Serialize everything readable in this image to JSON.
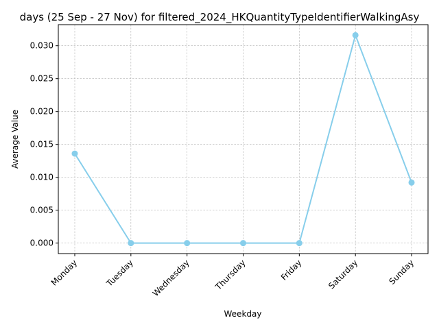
{
  "chart_data": {
    "type": "line",
    "title": "days (25 Sep - 27 Nov) for filtered_2024_HKQuantityTypeIdentifierWalkingAsy",
    "xlabel": "Weekday",
    "ylabel": "Average Value",
    "categories": [
      "Monday",
      "Tuesday",
      "Wednesday",
      "Thursday",
      "Friday",
      "Saturday",
      "Sunday"
    ],
    "series": [
      {
        "values": [
          0.0136,
          0.0,
          0.0,
          0.0,
          0.0,
          0.0316,
          0.0092
        ]
      }
    ],
    "ylim": [
      -0.0016,
      0.0332
    ],
    "yticks": [
      "0.000",
      "0.005",
      "0.010",
      "0.015",
      "0.020",
      "0.025",
      "0.030"
    ],
    "grid": true,
    "colors": {
      "line": "#87ceeb",
      "grid": "#b0b0b0",
      "axis": "#000000"
    }
  }
}
